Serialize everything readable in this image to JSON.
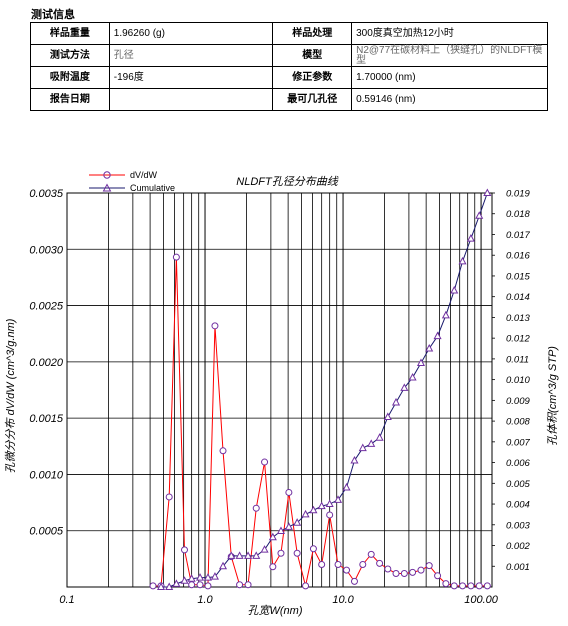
{
  "info": {
    "section_title": "测试信息",
    "rows": [
      {
        "l1": "样品重量",
        "v1": "1.96260 (g)",
        "l2": "样品处理",
        "v2": "300度真空加热12小时"
      },
      {
        "l1": "测试方法",
        "v1": "孔径",
        "l2": "模型",
        "v2": "N2@77在碳材料上（狭缝孔）的NLDFT模型"
      },
      {
        "l1": "吸附温度",
        "v1": "-196度",
        "l2": "修正参数",
        "v2": "1.70000 (nm)"
      },
      {
        "l1": "报告日期",
        "v1": "",
        "l2": "最可几孔径",
        "v2": "0.59146 (nm)"
      }
    ]
  },
  "chart_data": {
    "type": "line",
    "title": "NLDFT孔径分布曲线",
    "xlabel": "孔宽W(nm)",
    "ylabel_left": "孔微分分布 dV/dW (cm^3/g.nm)",
    "ylabel_right": "孔体积(cm^3/g STP)",
    "x_scale": "log",
    "xlim": [
      0.1,
      120
    ],
    "x_ticks": [
      "0.1",
      "1.0",
      "10.0",
      "100.00"
    ],
    "ylim_left": [
      0,
      0.0035
    ],
    "y_ticks_left": [
      "0.0005",
      "0.0010",
      "0.0015",
      "0.0020",
      "0.0025",
      "0.0030",
      "0.0035"
    ],
    "ylim_right": [
      0,
      0.019
    ],
    "y_ticks_right": [
      "0.001",
      "0.002",
      "0.003",
      "0.004",
      "0.005",
      "0.006",
      "0.007",
      "0.008",
      "0.009",
      "0.010",
      "0.011",
      "0.012",
      "0.013",
      "0.014",
      "0.015",
      "0.016",
      "0.017",
      "0.018",
      "0.019"
    ],
    "grid": true,
    "legend_position": "top-left",
    "series": [
      {
        "name": "dV/dW",
        "axis": "left",
        "color": "#ff0000",
        "marker_color": "#7030a0",
        "marker": "circle",
        "x": [
          0.42,
          0.48,
          0.55,
          0.62,
          0.71,
          0.8,
          0.92,
          1.05,
          1.18,
          1.35,
          1.55,
          1.78,
          2.05,
          2.35,
          2.7,
          3.1,
          3.55,
          4.05,
          4.65,
          5.35,
          6.1,
          7.0,
          8.0,
          9.2,
          10.6,
          12.1,
          13.9,
          16.0,
          18.4,
          21.1,
          24.2,
          27.8,
          31.9,
          36.7,
          42.1,
          48.4,
          55.6,
          63.9,
          73.4,
          84.4,
          97.0,
          111.0
        ],
        "y": [
          1e-05,
          1e-05,
          0.0008,
          0.00293,
          0.00033,
          2e-05,
          2e-05,
          1e-05,
          0.00232,
          0.00121,
          0.00027,
          2e-05,
          2e-05,
          0.0007,
          0.00111,
          0.00018,
          0.0003,
          0.00084,
          0.0003,
          1e-05,
          0.00034,
          0.0002,
          0.00064,
          0.0002,
          0.00015,
          5e-05,
          0.0002,
          0.00029,
          0.00021,
          0.00016,
          0.00012,
          0.00012,
          0.00013,
          0.00015,
          0.00019,
          0.0001,
          3e-05,
          1e-05,
          1e-05,
          1e-05,
          1e-05,
          1e-05
        ]
      },
      {
        "name": "Cumulative",
        "axis": "right",
        "color": "#1a1a6e",
        "marker_color": "#7030a0",
        "marker": "triangle",
        "x": [
          0.48,
          0.55,
          0.62,
          0.71,
          0.8,
          0.92,
          1.05,
          1.18,
          1.35,
          1.55,
          1.78,
          2.05,
          2.35,
          2.7,
          3.1,
          3.55,
          4.05,
          4.65,
          5.35,
          6.1,
          7.0,
          8.0,
          9.2,
          10.6,
          12.1,
          13.9,
          16.0,
          18.4,
          21.1,
          24.2,
          27.8,
          31.9,
          36.7,
          42.1,
          48.4,
          55.6,
          63.9,
          73.4,
          84.4,
          97.0,
          111.0
        ],
        "y": [
          0.0,
          0.0,
          0.00015,
          0.0003,
          0.0004,
          0.00045,
          0.00045,
          0.0005,
          0.001,
          0.0015,
          0.0015,
          0.0015,
          0.0015,
          0.0018,
          0.0024,
          0.0027,
          0.0029,
          0.0031,
          0.0035,
          0.0037,
          0.0039,
          0.004,
          0.0042,
          0.0048,
          0.0061,
          0.0067,
          0.0069,
          0.0072,
          0.0082,
          0.0089,
          0.0096,
          0.0101,
          0.0108,
          0.0115,
          0.0121,
          0.0131,
          0.0143,
          0.0157,
          0.0168,
          0.0179,
          0.019
        ]
      }
    ]
  }
}
